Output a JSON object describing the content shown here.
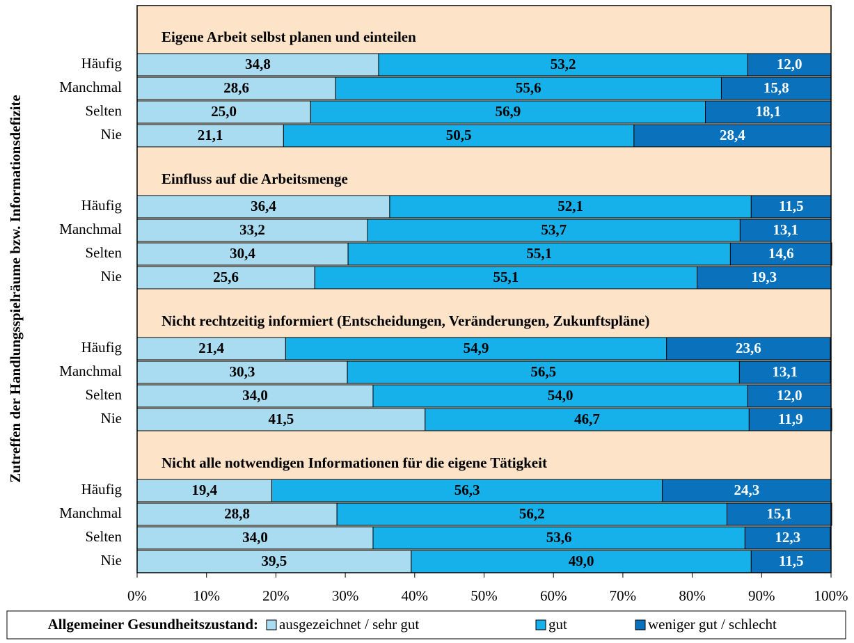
{
  "chart_data": {
    "type": "bar",
    "orientation": "horizontal",
    "stacked": true,
    "y_label": "Zutreffen der Handlungsspielräume bzw. Informationsdefizite",
    "legend_title": "Allgemeiner Gesundheitszustand:",
    "xlim": [
      0,
      100
    ],
    "xticks": [
      {
        "value": 0,
        "label": "0%"
      },
      {
        "value": 10,
        "label": "10%"
      },
      {
        "value": 20,
        "label": "20%"
      },
      {
        "value": 30,
        "label": "30%"
      },
      {
        "value": 40,
        "label": "40%"
      },
      {
        "value": 50,
        "label": "50%"
      },
      {
        "value": 60,
        "label": "60%"
      },
      {
        "value": 70,
        "label": "70%"
      },
      {
        "value": 80,
        "label": "80%"
      },
      {
        "value": 90,
        "label": "90%"
      },
      {
        "value": 100,
        "label": "100%"
      }
    ],
    "series": [
      {
        "name": "ausgezeichnet / sehr gut",
        "color": "#a9dcf0",
        "label_color": "#000000"
      },
      {
        "name": "gut",
        "color": "#16b0ea",
        "label_color": "#000000"
      },
      {
        "name": "weniger gut / schlecht",
        "color": "#0a72bd",
        "label_color": "#ffffff"
      }
    ],
    "panels": [
      {
        "title": "Eigene Arbeit selbst planen und einteilen",
        "categories": [
          "Häufig",
          "Manchmal",
          "Selten",
          "Nie"
        ],
        "series": [
          {
            "values": [
              34.8,
              28.6,
              25.0,
              21.1
            ],
            "value_labels": [
              "34,8",
              "28,6",
              "25,0",
              "21,1"
            ]
          },
          {
            "values": [
              53.2,
              55.6,
              56.9,
              50.5
            ],
            "value_labels": [
              "53,2",
              "55,6",
              "56,9",
              "50,5"
            ]
          },
          {
            "values": [
              12.0,
              15.8,
              18.1,
              28.4
            ],
            "value_labels": [
              "12,0",
              "15,8",
              "18,1",
              "28,4"
            ]
          }
        ]
      },
      {
        "title": "Einfluss auf die Arbeitsmenge",
        "categories": [
          "Häufig",
          "Manchmal",
          "Selten",
          "Nie"
        ],
        "series": [
          {
            "values": [
              36.4,
              33.2,
              30.4,
              25.6
            ],
            "value_labels": [
              "36,4",
              "33,2",
              "30,4",
              "25,6"
            ]
          },
          {
            "values": [
              52.1,
              53.7,
              55.1,
              55.1
            ],
            "value_labels": [
              "52,1",
              "53,7",
              "55,1",
              "55,1"
            ]
          },
          {
            "values": [
              11.5,
              13.1,
              14.6,
              19.3
            ],
            "value_labels": [
              "11,5",
              "13,1",
              "14,6",
              "19,3"
            ]
          }
        ]
      },
      {
        "title": "Nicht rechtzeitig informiert (Entscheidungen, Veränderungen, Zukunftspläne)",
        "categories": [
          "Häufig",
          "Manchmal",
          "Selten",
          "Nie"
        ],
        "series": [
          {
            "values": [
              21.4,
              30.3,
              34.0,
              41.5
            ],
            "value_labels": [
              "21,4",
              "30,3",
              "34,0",
              "41,5"
            ]
          },
          {
            "values": [
              54.9,
              56.5,
              54.0,
              46.7
            ],
            "value_labels": [
              "54,9",
              "56,5",
              "54,0",
              "46,7"
            ]
          },
          {
            "values": [
              23.6,
              13.1,
              12.0,
              11.9
            ],
            "value_labels": [
              "23,6",
              "13,1",
              "12,0",
              "11,9"
            ]
          }
        ]
      },
      {
        "title": "Nicht alle notwendigen Informationen für die eigene Tätigkeit",
        "categories": [
          "Häufig",
          "Manchmal",
          "Selten",
          "Nie"
        ],
        "series": [
          {
            "values": [
              19.4,
              28.8,
              34.0,
              39.5
            ],
            "value_labels": [
              "19,4",
              "28,8",
              "34,0",
              "39,5"
            ]
          },
          {
            "values": [
              56.3,
              56.2,
              53.6,
              49.0
            ],
            "value_labels": [
              "56,3",
              "56,2",
              "53,6",
              "49,0"
            ]
          },
          {
            "values": [
              24.3,
              15.1,
              12.3,
              11.5
            ],
            "value_labels": [
              "24,3",
              "15,1",
              "12,3",
              "11,5"
            ]
          }
        ]
      }
    ]
  }
}
